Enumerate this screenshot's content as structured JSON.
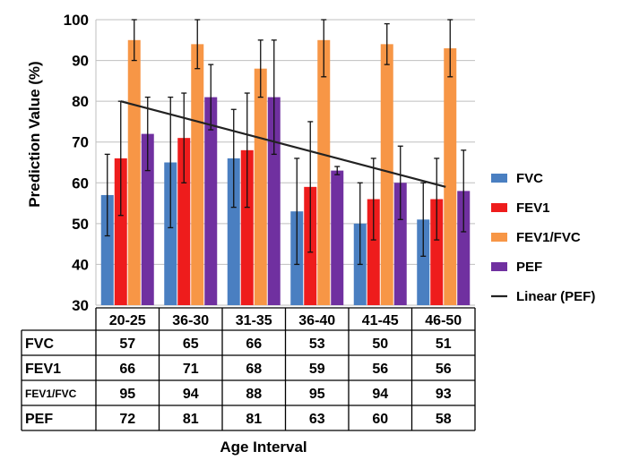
{
  "chart_data": {
    "type": "bar",
    "categories": [
      "20-25",
      "36-30",
      "31-35",
      "36-40",
      "41-45",
      "46-50"
    ],
    "ylabel": "Prediction Value (%)",
    "xlabel": "Age Interval",
    "ylim": [
      30,
      100
    ],
    "yticks": [
      30,
      40,
      50,
      60,
      70,
      80,
      90,
      100
    ],
    "grid": true,
    "legend_position": "right",
    "series": [
      {
        "name": "FVC",
        "color": "#4a7fc1",
        "values": [
          57,
          65,
          66,
          53,
          50,
          51
        ],
        "errors": [
          10,
          16,
          12,
          13,
          10,
          9
        ]
      },
      {
        "name": "FEV1",
        "color": "#ee1c1c",
        "values": [
          66,
          71,
          68,
          59,
          56,
          56
        ],
        "errors": [
          14,
          11,
          14,
          16,
          10,
          10
        ]
      },
      {
        "name": "FEV1/FVC",
        "color": "#f79646",
        "values": [
          95,
          94,
          88,
          95,
          94,
          93
        ],
        "errors": [
          5,
          6,
          7,
          9,
          5,
          7
        ]
      },
      {
        "name": "PEF",
        "color": "#7030a0",
        "values": [
          72,
          81,
          81,
          63,
          60,
          58
        ],
        "errors": [
          9,
          8,
          14,
          1,
          9,
          10
        ]
      }
    ],
    "trendline": {
      "name": "Linear (PEF)",
      "color": "#222222",
      "start": 80,
      "end": 59
    },
    "table": {
      "rows": [
        {
          "label": "FVC",
          "values": [
            "57",
            "65",
            "66",
            "53",
            "50",
            "51"
          ]
        },
        {
          "label": "FEV1",
          "values": [
            "66",
            "71",
            "68",
            "59",
            "56",
            "56"
          ]
        },
        {
          "label": "FEV1/FVC",
          "values": [
            "95",
            "94",
            "88",
            "95",
            "94",
            "93"
          ]
        },
        {
          "label": "PEF",
          "values": [
            "72",
            "81",
            "81",
            "63",
            "60",
            "58"
          ]
        }
      ]
    }
  }
}
